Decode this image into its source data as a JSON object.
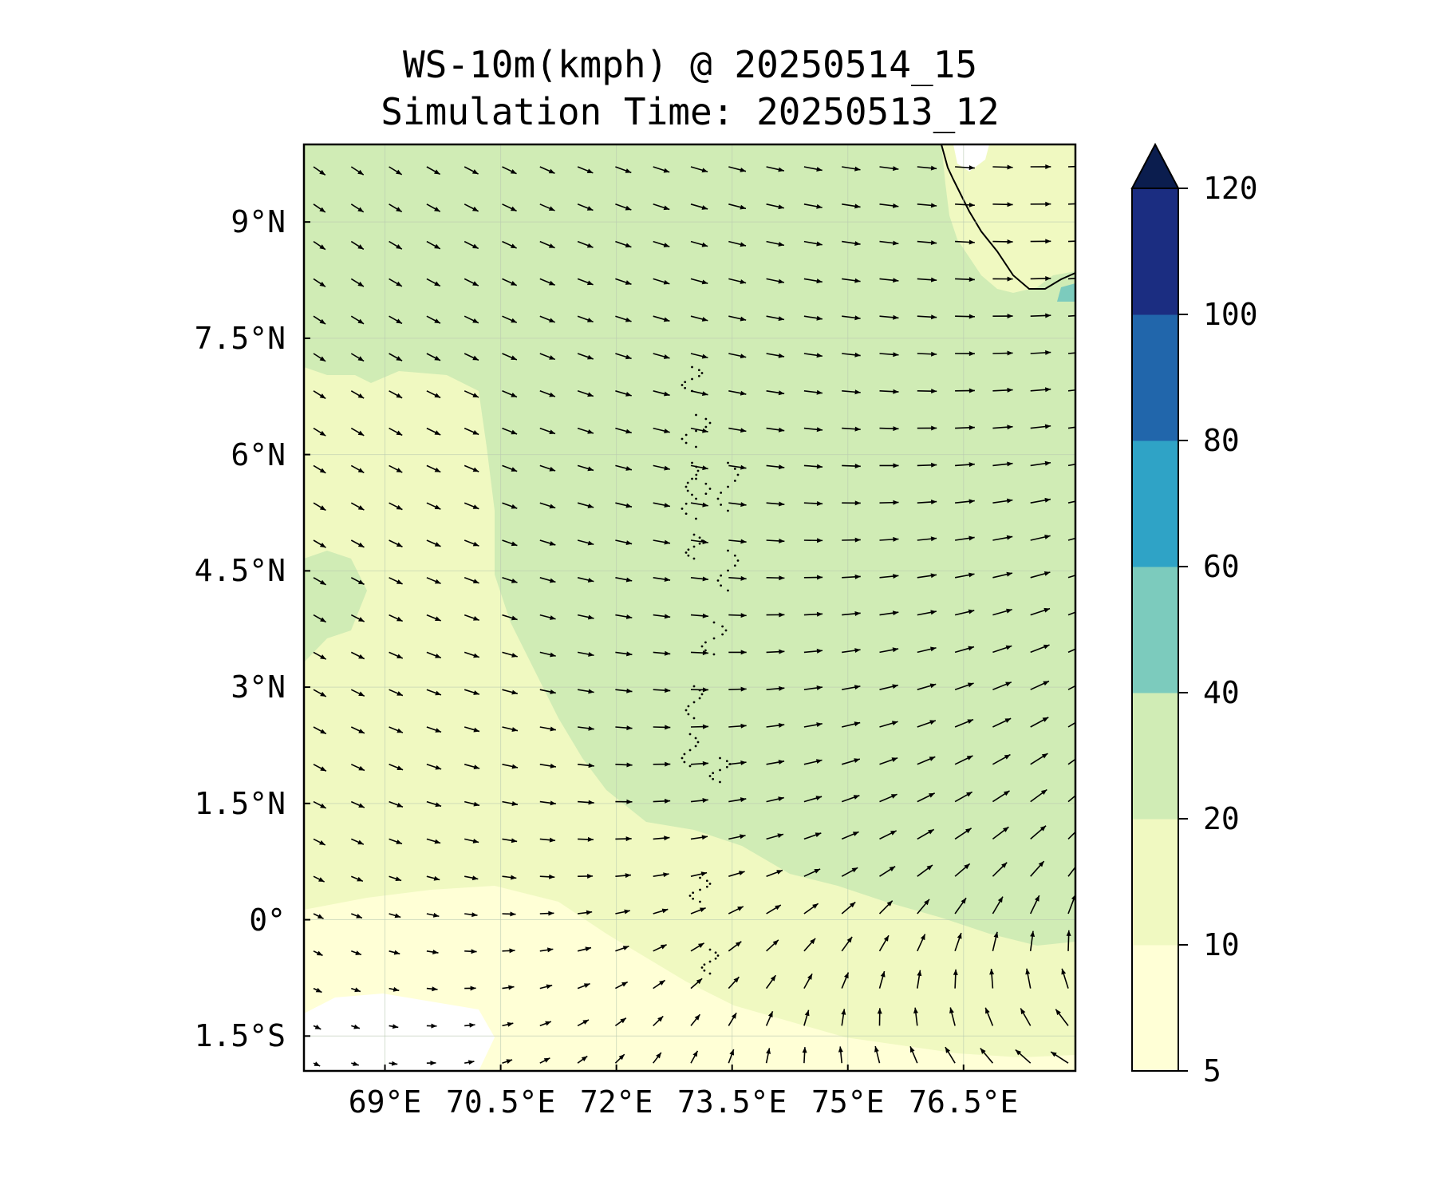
{
  "title": {
    "line1": "WS-10m(kmph) @ 20250514_15",
    "line2": "Simulation Time: 20250513_12"
  },
  "map": {
    "lon_range": [
      67.95,
      77.95
    ],
    "lat_range": [
      -1.95,
      10.0
    ],
    "lat_ticks": [
      {
        "value": 9,
        "label": "9°N"
      },
      {
        "value": 7.5,
        "label": "7.5°N"
      },
      {
        "value": 6,
        "label": "6°N"
      },
      {
        "value": 4.5,
        "label": "4.5°N"
      },
      {
        "value": 3,
        "label": "3°N"
      },
      {
        "value": 1.5,
        "label": "1.5°N"
      },
      {
        "value": 0,
        "label": "0°"
      },
      {
        "value": -1.5,
        "label": "1.5°S"
      }
    ],
    "lon_ticks": [
      {
        "value": 69,
        "label": "69°E"
      },
      {
        "value": 70.5,
        "label": "70.5°E"
      },
      {
        "value": 72,
        "label": "72°E"
      },
      {
        "value": 73.5,
        "label": "73.5°E"
      },
      {
        "value": 75,
        "label": "75°E"
      },
      {
        "value": 76.5,
        "label": "76.5°E"
      }
    ],
    "gridlines": true
  },
  "colorbar": {
    "levels": [
      {
        "value": 5,
        "label": "5"
      },
      {
        "value": 10,
        "label": "10"
      },
      {
        "value": 20,
        "label": "20"
      },
      {
        "value": 40,
        "label": "40"
      },
      {
        "value": 60,
        "label": "60"
      },
      {
        "value": 80,
        "label": "80"
      },
      {
        "value": 100,
        "label": "100"
      },
      {
        "value": 120,
        "label": "120"
      }
    ],
    "colors": [
      "#ffffd6",
      "#f0f9c1",
      "#d0ecb5",
      "#7ccbbd",
      "#2fa3c6",
      "#2166ab",
      "#1b2d81"
    ],
    "extend_color": "#0b1d4e"
  },
  "colors": {
    "land": "#ffffff",
    "coast": "#000000",
    "arrow": "#000000"
  }
}
